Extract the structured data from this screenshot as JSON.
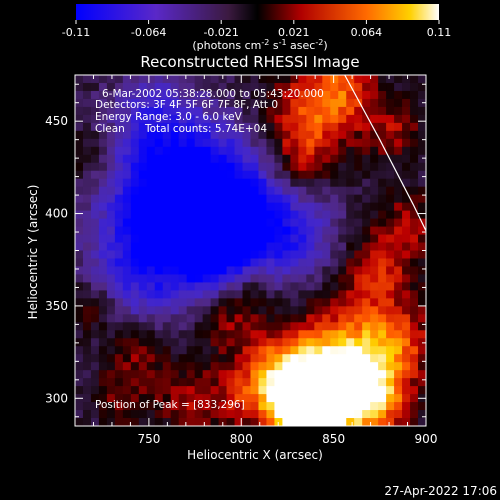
{
  "colorbar": {
    "ticks": [
      "-0.11",
      "-0.064",
      "-0.021",
      "0.021",
      "0.064",
      "0.11"
    ],
    "unit_main": "(photons cm",
    "unit_sup1": "-2",
    "unit_mid1": " s",
    "unit_sup2": "-1",
    "unit_mid2": " asec",
    "unit_sup3": "-2",
    "unit_end": ")",
    "range": [
      -0.11,
      0.11
    ]
  },
  "chart_data": {
    "type": "heatmap",
    "title": "Reconstructed RHESSI Image",
    "xlabel": "Heliocentric X (arcsec)",
    "ylabel": "Heliocentric Y (arcsec)",
    "xlim": [
      710,
      900
    ],
    "ylim": [
      285,
      475
    ],
    "x_ticks": [
      750,
      800,
      850,
      900
    ],
    "y_ticks": [
      300,
      350,
      400,
      450
    ],
    "x_tick_labels": [
      "750",
      "800",
      "850",
      "900"
    ],
    "y_tick_labels": [
      "300",
      "350",
      "400",
      "450"
    ],
    "annotations": {
      "time_range": "6-Mar-2002 05:38:28.000 to 05:43:20.000",
      "detectors": "Detectors: 3F 4F 5F 6F 7F 8F, Att 0",
      "energy": "Energy Range: 3.0 - 6.0 keV",
      "method": "Clean",
      "counts": "Total counts: 5.74E+04",
      "peak": "Position of Peak = [833,296]"
    },
    "peak": [
      833,
      296
    ],
    "limb_curve": [
      [
        856,
        475
      ],
      [
        875,
        440
      ],
      [
        893,
        405
      ],
      [
        910,
        370
      ],
      [
        922,
        340
      ]
    ]
  },
  "footer": {
    "date": "27-Apr-2022 17:06"
  }
}
